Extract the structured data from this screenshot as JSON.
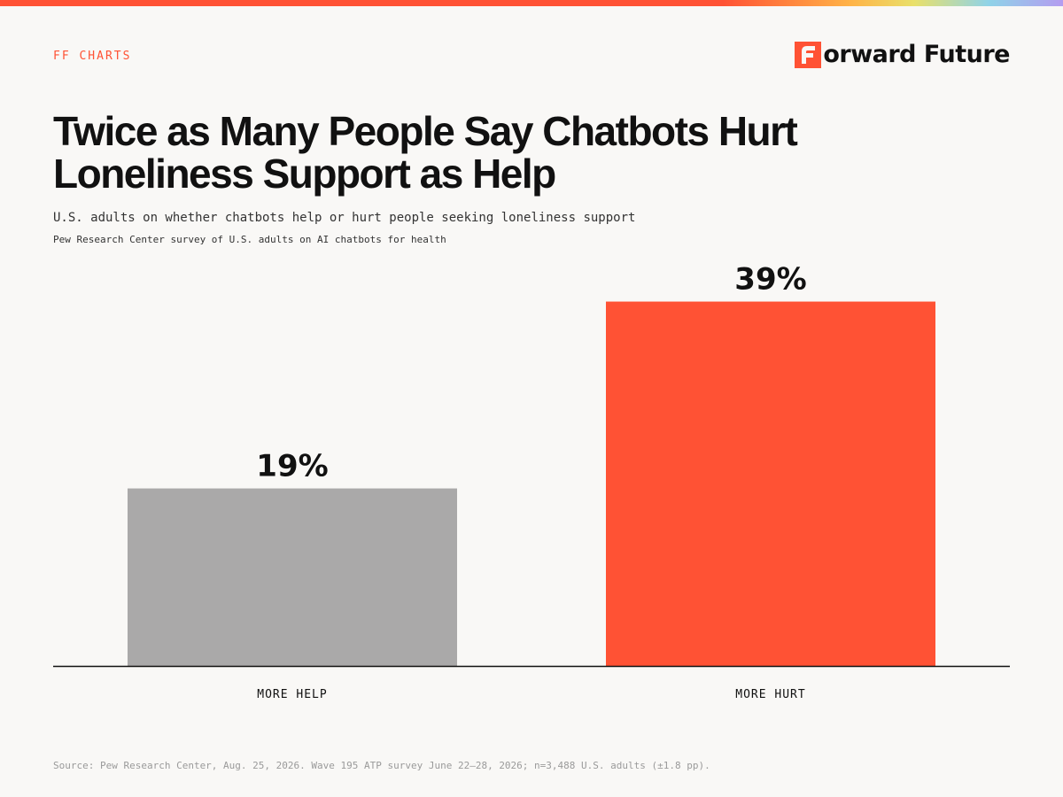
{
  "header": {
    "kicker": "FF CHARTS",
    "brand_name": "orward Future",
    "brand_mark_icon": "forward-future-logo-icon",
    "accent_color": "#ff5234"
  },
  "title": "Twice as Many People Say Chatbots Hurt Loneliness Support as Help",
  "subtitle": "U.S. adults on whether chatbots help or hurt people seeking loneliness support",
  "source_line": "Pew Research Center survey of U.S. adults on AI chatbots for health",
  "footer": "Source: Pew Research Center, Aug. 25, 2026. Wave 195 ATP survey June 22–28, 2026; n=3,488 U.S. adults (±1.8  pp).",
  "chart_data": {
    "type": "bar",
    "categories": [
      "MORE HELP",
      "MORE HURT"
    ],
    "values": [
      19,
      39
    ],
    "value_labels": [
      "19%",
      "39%"
    ],
    "colors": [
      "#aaa9a9",
      "#ff5234"
    ],
    "title": "",
    "xlabel": "",
    "ylabel": "",
    "grid": false,
    "legend": "none"
  }
}
